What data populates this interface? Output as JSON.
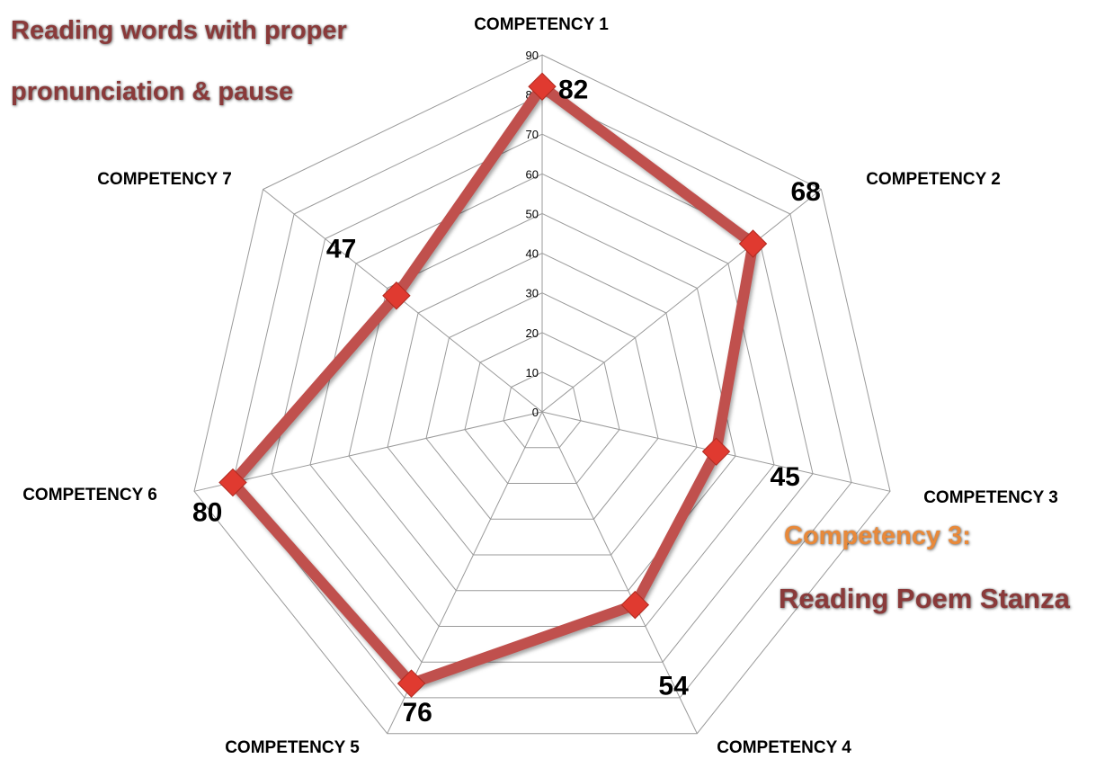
{
  "chart_data": {
    "type": "radar",
    "categories": [
      "COMPETENCY 1",
      "COMPETENCY 2",
      "COMPETENCY 3",
      "COMPETENCY 4",
      "COMPETENCY 5",
      "COMPETENCY 6",
      "COMPETENCY 7"
    ],
    "values": [
      82,
      68,
      45,
      54,
      76,
      80,
      47
    ],
    "rlim": [
      0,
      90
    ],
    "ticks": [
      "0",
      "10",
      "20",
      "30",
      "40",
      "50",
      "60",
      "70",
      "80",
      "90"
    ],
    "data_labels": [
      "82",
      "68",
      "45",
      "54",
      "76",
      "80",
      "47"
    ],
    "grid": true,
    "colors": {
      "line": "#c0504d",
      "marker": "#e03a30",
      "grid": "#9a9a9a"
    }
  },
  "annotations": {
    "competency1": [
      "Reading words with  proper",
      "pronunciation & pause"
    ],
    "competency3_title": "Competency 3:",
    "competency3_text": "Reading Poem Stanza"
  }
}
